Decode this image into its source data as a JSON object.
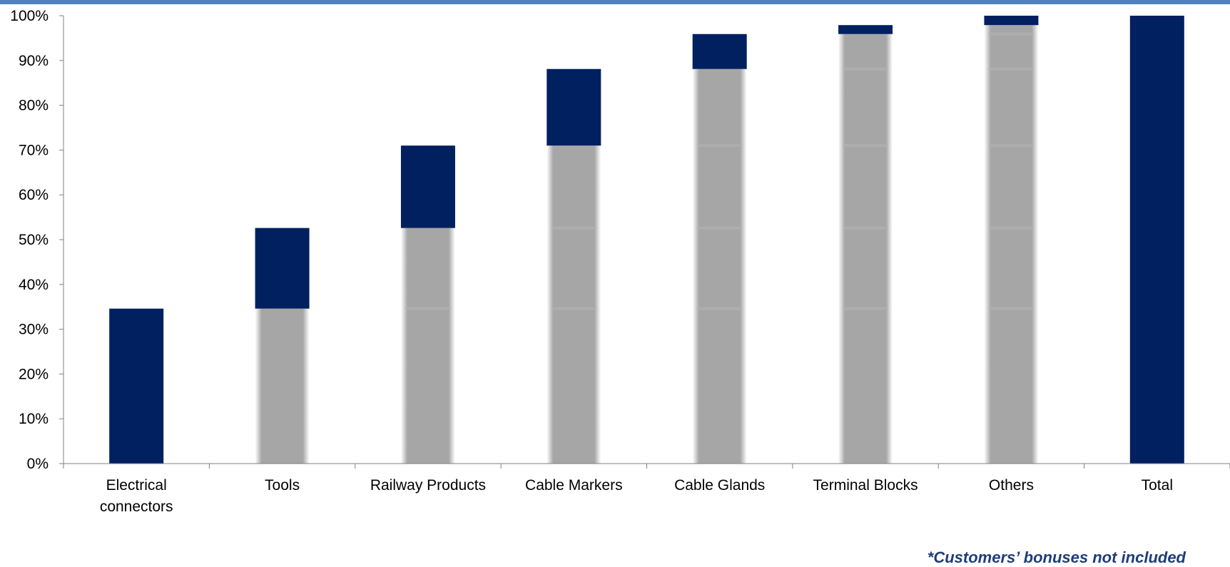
{
  "chart_data": {
    "type": "bar",
    "subtype": "waterfall",
    "categories": [
      "Electrical connectors",
      "Tools",
      "Railway Products",
      "Cable Markers",
      "Cable Glands",
      "Terminal Blocks",
      "Others",
      "Total"
    ],
    "series": [
      {
        "role": "base",
        "values": [
          0,
          34.6,
          52.6,
          71.0,
          88.1,
          95.9,
          97.9,
          0
        ]
      },
      {
        "role": "increment",
        "values": [
          34.6,
          18.0,
          18.4,
          17.1,
          7.8,
          2.0,
          2.1,
          100
        ]
      }
    ],
    "ylim": [
      0,
      100
    ],
    "yticks": [
      "0%",
      "10%",
      "20%",
      "30%",
      "40%",
      "50%",
      "60%",
      "70%",
      "80%",
      "90%",
      "100%"
    ],
    "grid": false,
    "legend": "none",
    "colors": {
      "increment": "#002060",
      "base": "#a6a6a6",
      "axis": "#808080",
      "top_rule": "#4f81bd",
      "footnote": "#1f3d7a"
    }
  },
  "footnote": "*Customers’ bonuses not included"
}
